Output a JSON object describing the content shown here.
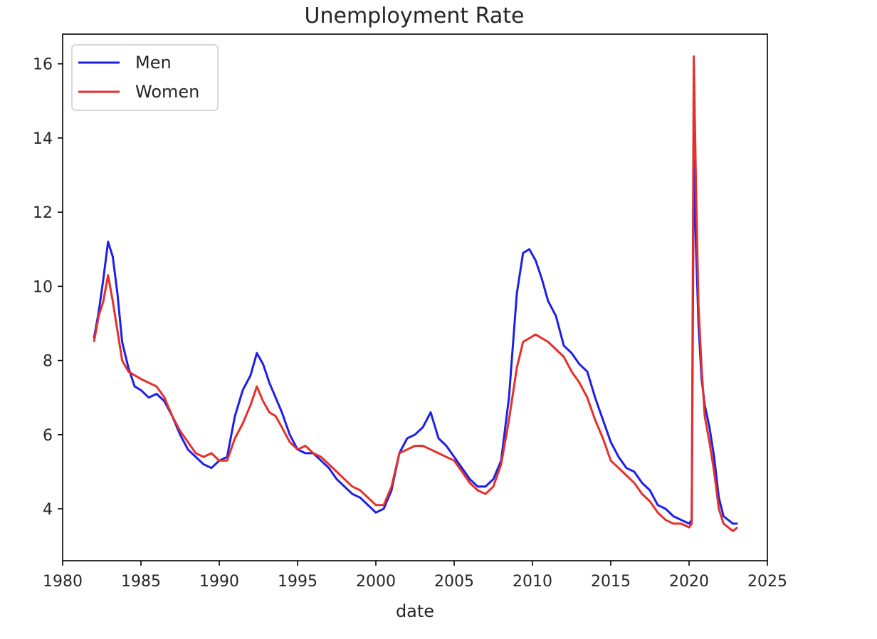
{
  "chart_data": {
    "type": "line",
    "title": "Unemployment Rate",
    "xlabel": "date",
    "ylabel": "",
    "xlim": [
      1980,
      2025
    ],
    "ylim": [
      2.6,
      16.8
    ],
    "x_ticks": [
      1980,
      1985,
      1990,
      1995,
      2000,
      2005,
      2010,
      2015,
      2020,
      2025
    ],
    "x_tick_labels": [
      "1980",
      "1985",
      "1990",
      "1995",
      "2000",
      "2005",
      "2010",
      "2015",
      "2020",
      "2025"
    ],
    "y_ticks": [
      4,
      6,
      8,
      10,
      12,
      14,
      16
    ],
    "y_tick_labels": [
      "4",
      "6",
      "8",
      "10",
      "12",
      "14",
      "16"
    ],
    "grid": false,
    "legend_position": "upper-left",
    "series": [
      {
        "name": "Men",
        "color": "#1f1fe6",
        "x": [
          1982.0,
          1982.3,
          1982.6,
          1982.9,
          1983.2,
          1983.5,
          1983.8,
          1984.2,
          1984.6,
          1985.0,
          1985.5,
          1986.0,
          1986.5,
          1987.0,
          1987.5,
          1988.0,
          1988.5,
          1989.0,
          1989.5,
          1990.0,
          1990.5,
          1991.0,
          1991.5,
          1992.0,
          1992.4,
          1992.8,
          1993.2,
          1993.6,
          1994.0,
          1994.5,
          1995.0,
          1995.5,
          1996.0,
          1996.5,
          1997.0,
          1997.5,
          1998.0,
          1998.5,
          1999.0,
          1999.5,
          2000.0,
          2000.5,
          2001.0,
          2001.5,
          2002.0,
          2002.5,
          2003.0,
          2003.5,
          2004.0,
          2004.5,
          2005.0,
          2005.5,
          2006.0,
          2006.5,
          2007.0,
          2007.5,
          2008.0,
          2008.5,
          2009.0,
          2009.4,
          2009.8,
          2010.2,
          2010.6,
          2011.0,
          2011.5,
          2012.0,
          2012.5,
          2013.0,
          2013.5,
          2014.0,
          2014.5,
          2015.0,
          2015.5,
          2016.0,
          2016.5,
          2017.0,
          2017.5,
          2018.0,
          2018.5,
          2019.0,
          2019.5,
          2020.0,
          2020.17,
          2020.3,
          2020.45,
          2020.6,
          2020.8,
          2021.0,
          2021.3,
          2021.6,
          2021.9,
          2022.2,
          2022.5,
          2022.8,
          2023.1
        ],
        "y": [
          8.6,
          9.3,
          10.2,
          11.2,
          10.8,
          9.8,
          8.5,
          7.8,
          7.3,
          7.2,
          7.0,
          7.1,
          6.9,
          6.5,
          6.0,
          5.6,
          5.4,
          5.2,
          5.1,
          5.3,
          5.4,
          6.5,
          7.2,
          7.6,
          8.2,
          7.9,
          7.4,
          7.0,
          6.6,
          6.0,
          5.6,
          5.5,
          5.5,
          5.3,
          5.1,
          4.8,
          4.6,
          4.4,
          4.3,
          4.1,
          3.9,
          4.0,
          4.5,
          5.5,
          5.9,
          6.0,
          6.2,
          6.6,
          5.9,
          5.7,
          5.4,
          5.1,
          4.8,
          4.6,
          4.6,
          4.8,
          5.3,
          7.0,
          9.8,
          10.9,
          11.0,
          10.7,
          10.2,
          9.6,
          9.2,
          8.4,
          8.2,
          7.9,
          7.7,
          7.0,
          6.4,
          5.8,
          5.4,
          5.1,
          5.0,
          4.7,
          4.5,
          4.1,
          4.0,
          3.8,
          3.7,
          3.6,
          3.7,
          13.4,
          11.0,
          9.0,
          7.5,
          6.8,
          6.2,
          5.4,
          4.3,
          3.8,
          3.7,
          3.6,
          3.6
        ]
      },
      {
        "name": "Women",
        "color": "#e6302a",
        "x": [
          1982.0,
          1982.3,
          1982.6,
          1982.9,
          1983.2,
          1983.5,
          1983.8,
          1984.2,
          1984.6,
          1985.0,
          1985.5,
          1986.0,
          1986.5,
          1987.0,
          1987.5,
          1988.0,
          1988.5,
          1989.0,
          1989.5,
          1990.0,
          1990.5,
          1991.0,
          1991.5,
          1992.0,
          1992.4,
          1992.8,
          1993.2,
          1993.6,
          1994.0,
          1994.5,
          1995.0,
          1995.5,
          1996.0,
          1996.5,
          1997.0,
          1997.5,
          1998.0,
          1998.5,
          1999.0,
          1999.5,
          2000.0,
          2000.5,
          2001.0,
          2001.5,
          2002.0,
          2002.5,
          2003.0,
          2003.5,
          2004.0,
          2004.5,
          2005.0,
          2005.5,
          2006.0,
          2006.5,
          2007.0,
          2007.5,
          2008.0,
          2008.5,
          2009.0,
          2009.4,
          2009.8,
          2010.2,
          2010.6,
          2011.0,
          2011.5,
          2012.0,
          2012.5,
          2013.0,
          2013.5,
          2014.0,
          2014.5,
          2015.0,
          2015.5,
          2016.0,
          2016.5,
          2017.0,
          2017.5,
          2018.0,
          2018.5,
          2019.0,
          2019.5,
          2020.0,
          2020.17,
          2020.3,
          2020.45,
          2020.6,
          2020.8,
          2021.0,
          2021.3,
          2021.6,
          2021.9,
          2022.2,
          2022.5,
          2022.8,
          2023.1
        ],
        "y": [
          8.5,
          9.2,
          9.6,
          10.3,
          9.6,
          8.8,
          8.0,
          7.7,
          7.6,
          7.5,
          7.4,
          7.3,
          7.0,
          6.5,
          6.1,
          5.8,
          5.5,
          5.4,
          5.5,
          5.3,
          5.3,
          5.9,
          6.3,
          6.8,
          7.3,
          6.9,
          6.6,
          6.5,
          6.2,
          5.8,
          5.6,
          5.7,
          5.5,
          5.4,
          5.2,
          5.0,
          4.8,
          4.6,
          4.5,
          4.3,
          4.1,
          4.1,
          4.6,
          5.5,
          5.6,
          5.7,
          5.7,
          5.6,
          5.5,
          5.4,
          5.3,
          5.0,
          4.7,
          4.5,
          4.4,
          4.6,
          5.2,
          6.4,
          7.8,
          8.5,
          8.6,
          8.7,
          8.6,
          8.5,
          8.3,
          8.1,
          7.7,
          7.4,
          7.0,
          6.4,
          5.9,
          5.3,
          5.1,
          4.9,
          4.7,
          4.4,
          4.2,
          3.9,
          3.7,
          3.6,
          3.6,
          3.5,
          3.6,
          16.2,
          12.5,
          9.5,
          7.8,
          6.5,
          5.8,
          5.0,
          4.0,
          3.6,
          3.5,
          3.4,
          3.5
        ]
      }
    ]
  }
}
